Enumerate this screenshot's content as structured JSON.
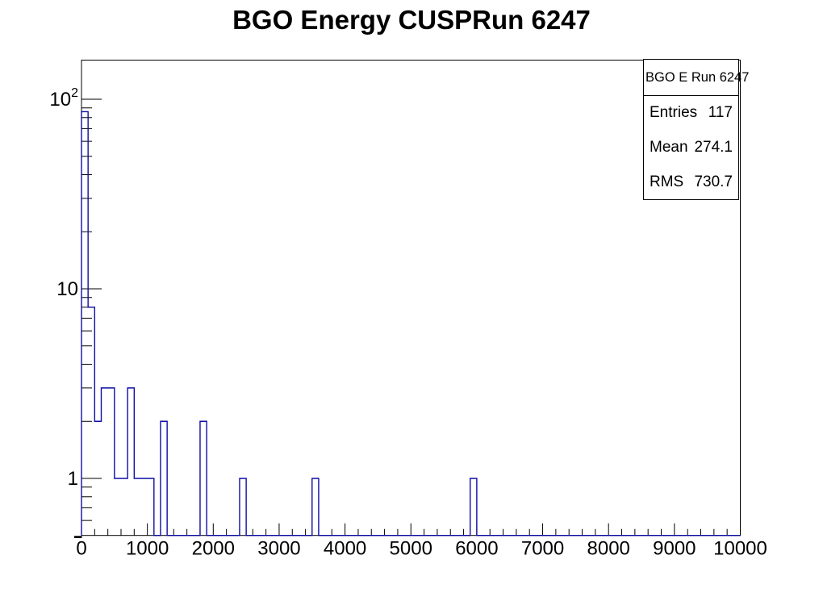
{
  "chart_data": {
    "type": "bar",
    "style": "ROOT step histogram, log y-axis",
    "title": "BGO Energy CUSPRun 6247",
    "xlabel": "",
    "ylabel": "",
    "x_range": [
      0,
      10000
    ],
    "y_scale": "log",
    "y_range": [
      0.5,
      161
    ],
    "bin_width": 100,
    "nonzero_bins": [
      {
        "x0": 0,
        "count": 86
      },
      {
        "x0": 100,
        "count": 8
      },
      {
        "x0": 200,
        "count": 2
      },
      {
        "x0": 300,
        "count": 3
      },
      {
        "x0": 400,
        "count": 3
      },
      {
        "x0": 500,
        "count": 1
      },
      {
        "x0": 600,
        "count": 1
      },
      {
        "x0": 700,
        "count": 3
      },
      {
        "x0": 800,
        "count": 1
      },
      {
        "x0": 900,
        "count": 1
      },
      {
        "x0": 1000,
        "count": 1
      },
      {
        "x0": 1200,
        "count": 2
      },
      {
        "x0": 1800,
        "count": 2
      },
      {
        "x0": 2400,
        "count": 1
      },
      {
        "x0": 3500,
        "count": 1
      },
      {
        "x0": 5900,
        "count": 1
      }
    ],
    "x_ticks": [
      {
        "v": 0,
        "label": "0"
      },
      {
        "v": 1000,
        "label": "1000"
      },
      {
        "v": 2000,
        "label": "2000"
      },
      {
        "v": 3000,
        "label": "3000"
      },
      {
        "v": 4000,
        "label": "4000"
      },
      {
        "v": 5000,
        "label": "5000"
      },
      {
        "v": 6000,
        "label": "6000"
      },
      {
        "v": 7000,
        "label": "7000"
      },
      {
        "v": 8000,
        "label": "8000"
      },
      {
        "v": 9000,
        "label": "9000"
      },
      {
        "v": 10000,
        "label": "10000"
      }
    ],
    "x_minor_step": 200,
    "y_ticks": [
      {
        "v": 1,
        "label": "1",
        "sup": ""
      },
      {
        "v": 10,
        "label": "10",
        "sup": ""
      },
      {
        "v": 100,
        "label": "10",
        "sup": "2"
      }
    ],
    "grid": false,
    "legend": "none",
    "line_color": "#0d0da5",
    "frame_color": "#000000"
  },
  "stats": {
    "header": "BGO E Run 6247",
    "rows": [
      {
        "label": "Entries",
        "value": "117"
      },
      {
        "label": "Mean",
        "value": "274.1"
      },
      {
        "label": "RMS",
        "value": "730.7"
      }
    ]
  }
}
